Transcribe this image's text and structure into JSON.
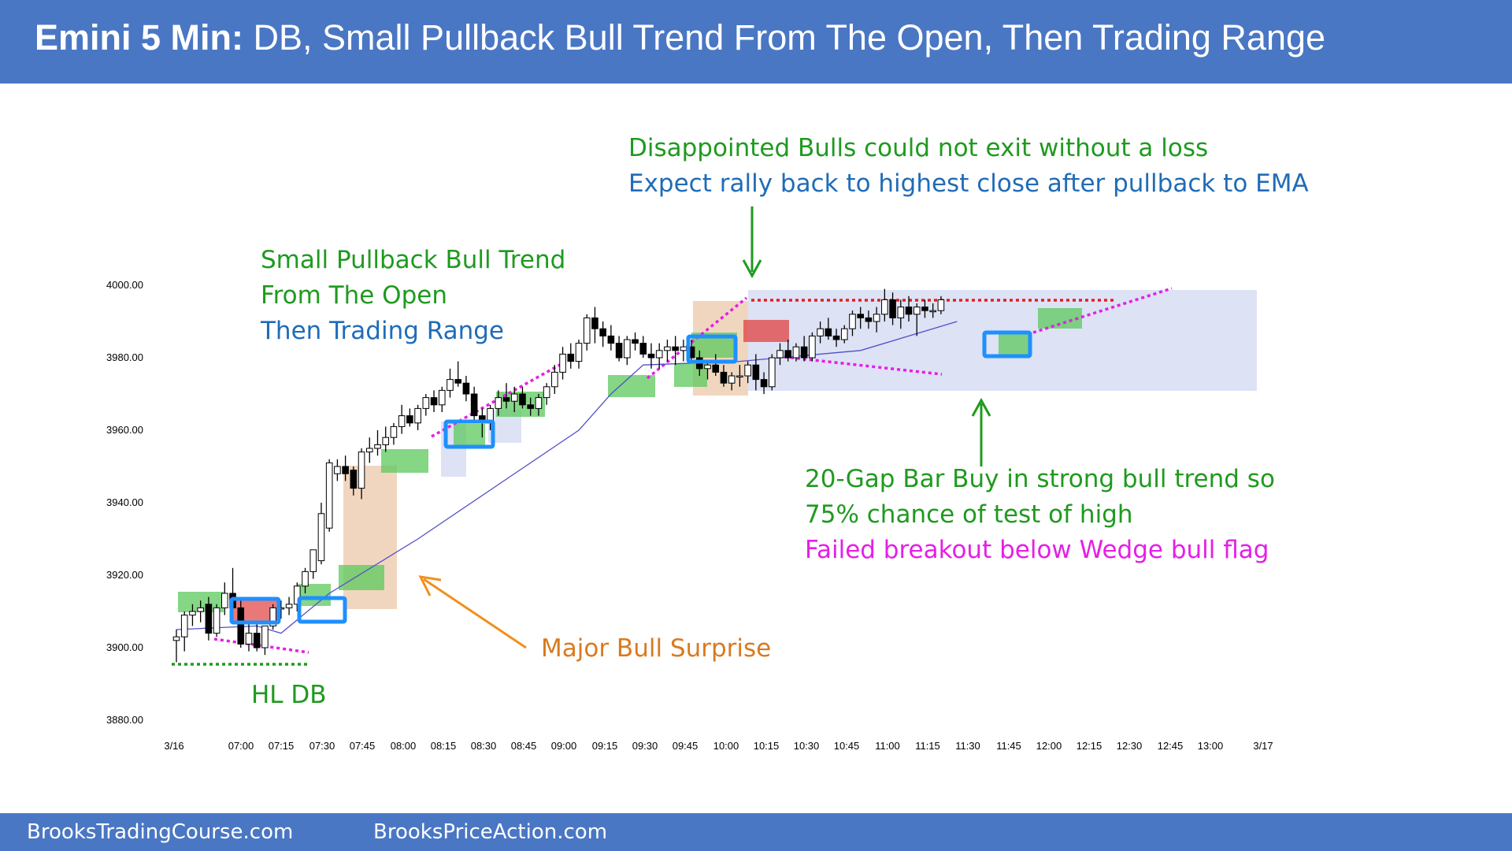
{
  "header": {
    "title_bold": "Emini 5 Min:",
    "title_rest": " DB, Small Pullback Bull Trend From The Open, Then Trading Range"
  },
  "footer": {
    "left": "BrooksTradingCourse.com",
    "right": "BrooksPriceAction.com"
  },
  "annotations": {
    "top_line1": "Disappointed Bulls could not exit without a loss",
    "top_line2": "Expect rally back to highest close after pullback to EMA",
    "left_line1": "Small Pullback Bull Trend",
    "left_line2": "From The Open",
    "left_line3": "Then Trading Range",
    "right_line1": "20-Gap Bar Buy in strong bull trend so",
    "right_line2": "75% chance of test of high",
    "right_line3": "Failed breakout below Wedge bull flag",
    "surprise": "Major Bull Surprise",
    "hl_db": "HL DB"
  },
  "colors": {
    "header_bg": "#4a77c4",
    "bull_candle": "#ffffff",
    "bear_candle": "#000000",
    "ema": "#5050c8",
    "green_box": "#5cc85c",
    "red_box": "#e04040",
    "blue_outline": "#1e90ff",
    "range_box": "#dde2f5",
    "tan_box": "#f0d2b8",
    "magenta_line": "#e61ee6",
    "red_dotted": "#e02020",
    "green_dotted": "#1f9a1f",
    "orange_arrow": "#f0901e",
    "green_arrow": "#1f9a1f"
  },
  "chart_data": {
    "type": "candlestick",
    "ylim": [
      3880,
      4000
    ],
    "y_ticks": [
      "4000.00",
      "3980.00",
      "3960.00",
      "3940.00",
      "3920.00",
      "3900.00",
      "3880.00"
    ],
    "y_tick_values": [
      4000,
      3980,
      3960,
      3940,
      3920,
      3900,
      3880
    ],
    "x_ticks": [
      "3/16",
      "07:00",
      "07:15",
      "07:30",
      "07:45",
      "08:00",
      "08:15",
      "08:30",
      "08:45",
      "09:00",
      "09:15",
      "09:30",
      "09:45",
      "10:00",
      "10:15",
      "10:30",
      "10:45",
      "11:00",
      "11:15",
      "11:30",
      "11:45",
      "12:00",
      "12:15",
      "12:30",
      "12:45",
      "13:00",
      "3/17"
    ],
    "ohlc": [
      [
        3902,
        3905,
        3896,
        3903
      ],
      [
        3903,
        3910,
        3899,
        3909
      ],
      [
        3909,
        3912,
        3906,
        3910
      ],
      [
        3910,
        3913,
        3907,
        3911
      ],
      [
        3912,
        3914,
        3902,
        3904
      ],
      [
        3904,
        3912,
        3903,
        3911
      ],
      [
        3911,
        3918,
        3909,
        3915
      ],
      [
        3915,
        3922,
        3909,
        3911
      ],
      [
        3911,
        3914,
        3900,
        3901
      ],
      [
        3901,
        3907,
        3899,
        3904
      ],
      [
        3904,
        3907,
        3899,
        3900
      ],
      [
        3900,
        3906,
        3898,
        3906
      ],
      [
        3906,
        3912,
        3905,
        3911
      ],
      [
        3911,
        3913,
        3908,
        3911
      ],
      [
        3911,
        3914,
        3909,
        3912
      ],
      [
        3912,
        3918,
        3910,
        3917
      ],
      [
        3917,
        3922,
        3915,
        3921
      ],
      [
        3921,
        3926,
        3919,
        3927
      ],
      [
        3924,
        3940,
        3923,
        3937
      ],
      [
        3933,
        3952,
        3932,
        3951
      ],
      [
        3948,
        3952,
        3946,
        3950
      ],
      [
        3950,
        3953,
        3946,
        3948
      ],
      [
        3949,
        3950,
        3942,
        3944
      ],
      [
        3944,
        3955,
        3941,
        3954
      ],
      [
        3954,
        3958,
        3951,
        3955
      ],
      [
        3955,
        3960,
        3953,
        3956
      ],
      [
        3956,
        3961,
        3954,
        3958
      ],
      [
        3958,
        3962,
        3956,
        3961
      ],
      [
        3961,
        3967,
        3959,
        3964
      ],
      [
        3964,
        3966,
        3961,
        3962
      ],
      [
        3962,
        3967,
        3960,
        3966
      ],
      [
        3966,
        3970,
        3964,
        3969
      ],
      [
        3969,
        3971,
        3965,
        3967
      ],
      [
        3967,
        3972,
        3965,
        3971
      ],
      [
        3971,
        3977,
        3969,
        3974
      ],
      [
        3974,
        3979,
        3972,
        3973
      ],
      [
        3973,
        3975,
        3968,
        3970
      ],
      [
        3970,
        3972,
        3962,
        3964
      ],
      [
        3964,
        3966,
        3958,
        3963
      ],
      [
        3962,
        3967,
        3960,
        3966
      ],
      [
        3966,
        3971,
        3964,
        3969
      ],
      [
        3969,
        3973,
        3966,
        3968
      ],
      [
        3968,
        3972,
        3965,
        3970
      ],
      [
        3970,
        3972,
        3966,
        3967
      ],
      [
        3967,
        3969,
        3964,
        3966
      ],
      [
        3966,
        3970,
        3964,
        3969
      ],
      [
        3969,
        3973,
        3967,
        3972
      ],
      [
        3972,
        3978,
        3970,
        3976
      ],
      [
        3976,
        3983,
        3974,
        3981
      ],
      [
        3981,
        3984,
        3977,
        3979
      ],
      [
        3979,
        3985,
        3977,
        3984
      ],
      [
        3984,
        3992,
        3982,
        3991
      ],
      [
        3991,
        3994,
        3984,
        3988
      ],
      [
        3988,
        3990,
        3983,
        3986
      ],
      [
        3986,
        3989,
        3982,
        3984
      ],
      [
        3984,
        3986,
        3979,
        3980
      ],
      [
        3980,
        3986,
        3978,
        3985
      ],
      [
        3985,
        3987,
        3982,
        3984
      ],
      [
        3984,
        3986,
        3980,
        3981
      ],
      [
        3981,
        3984,
        3977,
        3980
      ],
      [
        3980,
        3984,
        3977,
        3982
      ],
      [
        3982,
        3985,
        3979,
        3983
      ],
      [
        3983,
        3986,
        3978,
        3982
      ],
      [
        3982,
        3985,
        3979,
        3983
      ],
      [
        3983,
        3985,
        3979,
        3980
      ],
      [
        3980,
        3982,
        3975,
        3977
      ],
      [
        3977,
        3979,
        3974,
        3978
      ],
      [
        3978,
        3981,
        3975,
        3976
      ],
      [
        3976,
        3978,
        3972,
        3973
      ],
      [
        3973,
        3976,
        3971,
        3975
      ],
      [
        3975,
        3978,
        3972,
        3975
      ],
      [
        3975,
        3979,
        3973,
        3978
      ],
      [
        3978,
        3981,
        3971,
        3974
      ],
      [
        3974,
        3976,
        3970,
        3972
      ],
      [
        3972,
        3981,
        3971,
        3980
      ],
      [
        3980,
        3984,
        3978,
        3982
      ],
      [
        3982,
        3985,
        3979,
        3980
      ],
      [
        3980,
        3984,
        3979,
        3983
      ],
      [
        3983,
        3986,
        3979,
        3980
      ],
      [
        3980,
        3987,
        3979,
        3986
      ],
      [
        3986,
        3990,
        3984,
        3988
      ],
      [
        3988,
        3991,
        3985,
        3986
      ],
      [
        3986,
        3988,
        3983,
        3985
      ],
      [
        3985,
        3989,
        3984,
        3988
      ],
      [
        3988,
        3993,
        3986,
        3992
      ],
      [
        3992,
        3994,
        3988,
        3991
      ],
      [
        3991,
        3993,
        3988,
        3990
      ],
      [
        3990,
        3994,
        3987,
        3992
      ],
      [
        3992,
        3999,
        3990,
        3996
      ],
      [
        3996,
        3998,
        3989,
        3991
      ],
      [
        3991,
        3996,
        3988,
        3994
      ],
      [
        3994,
        3997,
        3990,
        3992
      ],
      [
        3992,
        3995,
        3986,
        3994
      ],
      [
        3994,
        3996,
        3991,
        3993
      ],
      [
        3993,
        3995,
        3991,
        3993
      ],
      [
        3993,
        3997,
        3992,
        3996
      ]
    ],
    "ema_points": [
      [
        3905,
        0
      ],
      [
        3906,
        10
      ],
      [
        3904,
        13
      ],
      [
        3915,
        19
      ],
      [
        3930,
        30
      ],
      [
        3945,
        40
      ],
      [
        3960,
        50
      ],
      [
        3970,
        54
      ],
      [
        3978,
        58
      ],
      [
        3979,
        70
      ],
      [
        3982,
        85
      ],
      [
        3990,
        97
      ]
    ]
  }
}
